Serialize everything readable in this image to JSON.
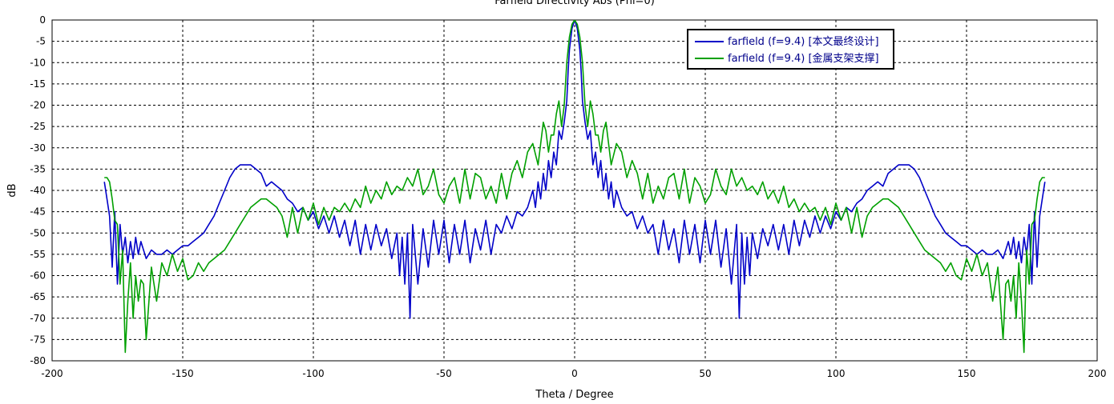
{
  "chart_data": {
    "type": "line",
    "title": "Farfield Directivity Abs (Phi=0)",
    "xlabel": "Theta / Degree",
    "ylabel": "dB",
    "xlim": [
      -200,
      200
    ],
    "ylim": [
      -80,
      0
    ],
    "xticks": [
      -200,
      -150,
      -100,
      -50,
      0,
      50,
      100,
      150,
      200
    ],
    "yticks": [
      0,
      -5,
      -10,
      -15,
      -20,
      -25,
      -30,
      -35,
      -40,
      -45,
      -50,
      -55,
      -60,
      -65,
      -70,
      -75,
      -80
    ],
    "grid": true,
    "legend_position": "top-right",
    "series": [
      {
        "name": "farfield (f=9.4) [本文最终设计]",
        "color": "#0000c8",
        "x": [
          0,
          1,
          2,
          2.5,
          3,
          4,
          5,
          6,
          7,
          8,
          9,
          10,
          11,
          12,
          13,
          14,
          15,
          16,
          18,
          20,
          22,
          24,
          26,
          28,
          30,
          32,
          34,
          36,
          38,
          40,
          42,
          44,
          46,
          48,
          50,
          52,
          54,
          56,
          58,
          60,
          62,
          63,
          64,
          65,
          66,
          67,
          68,
          70,
          72,
          74,
          76,
          78,
          80,
          82,
          84,
          86,
          88,
          90,
          92,
          94,
          96,
          98,
          100,
          102,
          104,
          106,
          108,
          110,
          112,
          114,
          116,
          118,
          120,
          122,
          124,
          126,
          128,
          130,
          132,
          134,
          136,
          138,
          140,
          142,
          144,
          146,
          148,
          150,
          152,
          154,
          156,
          158,
          160,
          162,
          164,
          166,
          167,
          168,
          169,
          170,
          171,
          172,
          173,
          174,
          175,
          176,
          177,
          178,
          179,
          180
        ],
        "values": [
          0,
          -2,
          -7,
          -12,
          -19,
          -24,
          -28,
          -26,
          -34,
          -31,
          -37,
          -33,
          -40,
          -36,
          -42,
          -38,
          -44,
          -40,
          -44,
          -46,
          -45,
          -49,
          -46,
          -50,
          -48,
          -55,
          -47,
          -54,
          -49,
          -57,
          -47,
          -55,
          -48,
          -57,
          -47,
          -55,
          -47,
          -58,
          -49,
          -62,
          -48,
          -70,
          -50,
          -62,
          -51,
          -60,
          -50,
          -56,
          -49,
          -53,
          -48,
          -54,
          -48,
          -55,
          -47,
          -53,
          -47,
          -51,
          -46,
          -50,
          -46,
          -49,
          -45,
          -47,
          -44,
          -45,
          -43,
          -42,
          -40,
          -39,
          -38,
          -39,
          -36,
          -35,
          -34,
          -34,
          -34,
          -35,
          -37,
          -40,
          -43,
          -46,
          -48,
          -50,
          -51,
          -52,
          -53,
          -53,
          -54,
          -55,
          -54,
          -55,
          -55,
          -54,
          -56,
          -52,
          -55,
          -51,
          -56,
          -52,
          -57,
          -51,
          -55,
          -48,
          -62,
          -45,
          -58,
          -46,
          -42,
          -38
        ]
      },
      {
        "name": "farfield (f=9.4) [金属支架支撑]",
        "color": "#00a000",
        "x": [
          0,
          1,
          2,
          3,
          4,
          5,
          6,
          7,
          8,
          9,
          10,
          11,
          12,
          14,
          16,
          18,
          20,
          22,
          24,
          26,
          28,
          30,
          32,
          34,
          36,
          38,
          40,
          42,
          44,
          46,
          48,
          50,
          52,
          54,
          56,
          58,
          60,
          62,
          64,
          66,
          68,
          70,
          72,
          74,
          76,
          78,
          80,
          82,
          84,
          86,
          88,
          90,
          92,
          94,
          96,
          98,
          100,
          102,
          104,
          106,
          108,
          110,
          112,
          114,
          116,
          118,
          120,
          122,
          124,
          126,
          128,
          130,
          132,
          134,
          136,
          138,
          140,
          142,
          144,
          146,
          148,
          150,
          152,
          154,
          156,
          158,
          160,
          162,
          164,
          165,
          166,
          167,
          168,
          169,
          170,
          171,
          172,
          173,
          174,
          175,
          176,
          177,
          178,
          179,
          180
        ],
        "values": [
          0,
          -1,
          -4,
          -10,
          -20,
          -25,
          -19,
          -22,
          -27,
          -27,
          -31,
          -26,
          -24,
          -34,
          -29,
          -31,
          -37,
          -33,
          -36,
          -42,
          -36,
          -43,
          -39,
          -42,
          -37,
          -36,
          -42,
          -35,
          -43,
          -37,
          -39,
          -43,
          -41,
          -35,
          -39,
          -41,
          -35,
          -39,
          -37,
          -40,
          -39,
          -41,
          -38,
          -42,
          -40,
          -43,
          -39,
          -44,
          -42,
          -45,
          -43,
          -45,
          -44,
          -47,
          -44,
          -48,
          -43,
          -47,
          -44,
          -50,
          -44,
          -51,
          -46,
          -44,
          -43,
          -42,
          -42,
          -43,
          -44,
          -46,
          -48,
          -50,
          -52,
          -54,
          -55,
          -56,
          -57,
          -59,
          -57,
          -60,
          -61,
          -56,
          -59,
          -55,
          -60,
          -57,
          -66,
          -58,
          -75,
          -62,
          -61,
          -66,
          -60,
          -70,
          -57,
          -66,
          -78,
          -54,
          -62,
          -48,
          -47,
          -42,
          -38,
          -37,
          -37
        ]
      }
    ]
  }
}
